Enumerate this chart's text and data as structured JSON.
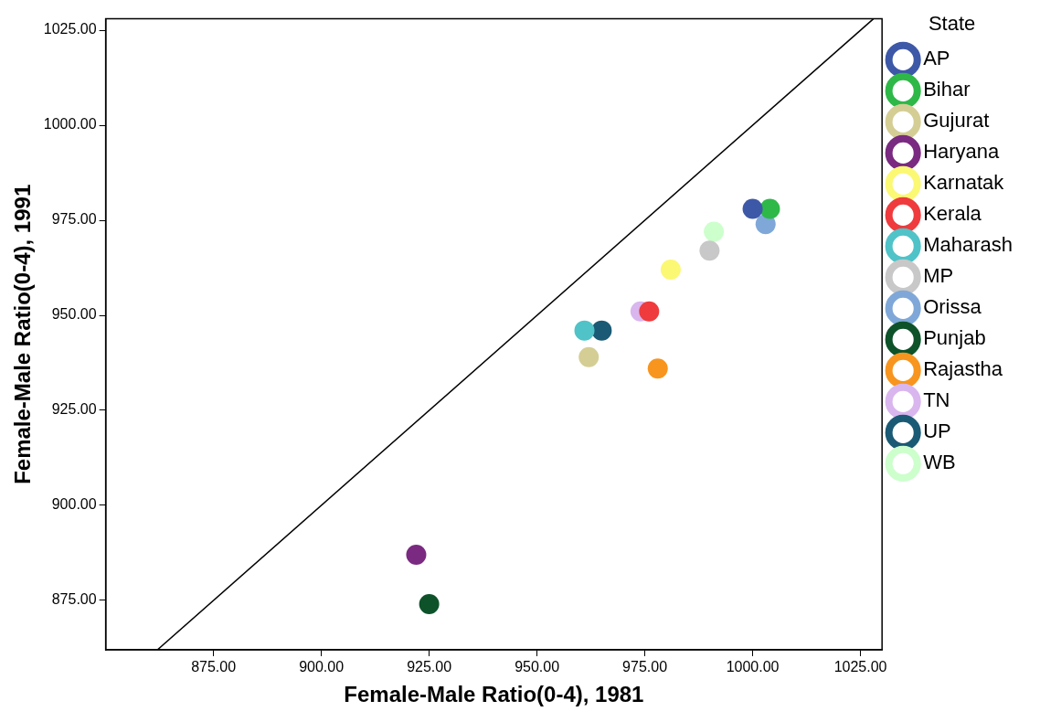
{
  "chart_data": {
    "type": "scatter",
    "xlabel": "Female-Male Ratio(0-4), 1981",
    "ylabel": "Female-Male Ratio(0-4), 1991",
    "legend_title": "State",
    "legend": "right",
    "marker": "circle",
    "grid": false,
    "xlim": [
      850,
      1030
    ],
    "ylim": [
      862,
      1028
    ],
    "xticks": [
      {
        "value": 875,
        "label": "875.00"
      },
      {
        "value": 900,
        "label": "900.00"
      },
      {
        "value": 925,
        "label": "925.00"
      },
      {
        "value": 950,
        "label": "950.00"
      },
      {
        "value": 975,
        "label": "975.00"
      },
      {
        "value": 1000,
        "label": "1000.00"
      },
      {
        "value": 1025,
        "label": "1025.00"
      }
    ],
    "yticks": [
      {
        "value": 875,
        "label": "875.00"
      },
      {
        "value": 900,
        "label": "900.00"
      },
      {
        "value": 925,
        "label": "925.00"
      },
      {
        "value": 950,
        "label": "950.00"
      },
      {
        "value": 975,
        "label": "975.00"
      },
      {
        "value": 1000,
        "label": "1000.00"
      },
      {
        "value": 1025,
        "label": "1025.00"
      }
    ],
    "series": [
      {
        "type": "line",
        "color": "#000000",
        "x": [
          862,
          1028
        ],
        "values": [
          862,
          1028
        ],
        "marker": "none"
      },
      {
        "name": "AP",
        "color": "#3e58a8",
        "x": [
          1000
        ],
        "values": [
          978
        ]
      },
      {
        "name": "Bihar",
        "color": "#2eb848",
        "x": [
          1004
        ],
        "values": [
          978
        ]
      },
      {
        "name": "Gujurat",
        "color": "#d4ce95",
        "x": [
          962
        ],
        "values": [
          939
        ]
      },
      {
        "name": "Haryana",
        "color": "#7a2a80",
        "x": [
          922
        ],
        "values": [
          887
        ]
      },
      {
        "name": "Karnatak",
        "color": "#fbf873",
        "x": [
          981
        ],
        "values": [
          962
        ]
      },
      {
        "name": "Kerala",
        "color": "#ef3b3d",
        "x": [
          976
        ],
        "values": [
          951
        ]
      },
      {
        "name": "Maharash",
        "color": "#4fc3c8",
        "x": [
          961
        ],
        "values": [
          946
        ]
      },
      {
        "name": "MP",
        "color": "#c8c8c8",
        "x": [
          990
        ],
        "values": [
          967
        ]
      },
      {
        "name": "Orissa",
        "color": "#7fa8d8",
        "x": [
          1003
        ],
        "values": [
          974
        ]
      },
      {
        "name": "Punjab",
        "color": "#0e522a",
        "x": [
          925
        ],
        "values": [
          874
        ]
      },
      {
        "name": "Rajastha",
        "color": "#f7951f",
        "x": [
          978
        ],
        "values": [
          936
        ]
      },
      {
        "name": "TN",
        "color": "#d9b6ee",
        "x": [
          974
        ],
        "values": [
          951
        ]
      },
      {
        "name": "UP",
        "color": "#1a5a74",
        "x": [
          965
        ],
        "values": [
          946
        ]
      },
      {
        "name": "WB",
        "color": "#ccffcc",
        "x": [
          991
        ],
        "values": [
          972
        ]
      }
    ]
  }
}
